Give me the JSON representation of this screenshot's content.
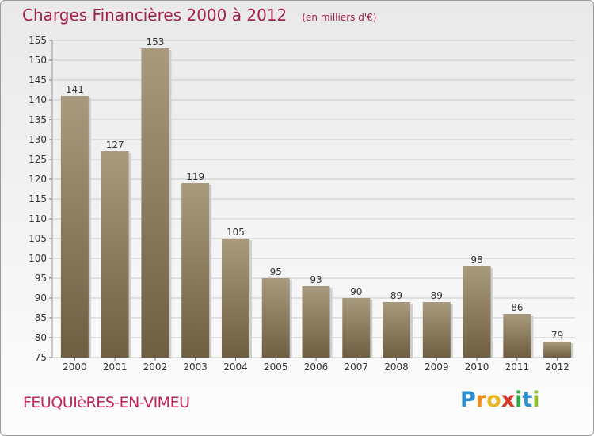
{
  "title": "Charges Financières 2000 à 2012",
  "unit_note": "(en milliers d'€)",
  "town": "FEUQUIèRES-EN-VIMEU",
  "brand": {
    "letters": [
      "P",
      "r",
      "o",
      "x",
      "i",
      "t",
      "i"
    ],
    "colors": [
      "#2e8fd0",
      "#f08c1e",
      "#e8b923",
      "#d83a2a",
      "#2fa84a",
      "#2e8fd0",
      "#8fbf2a"
    ]
  },
  "colors": {
    "title": "#a3204b",
    "bar_light": "#a89a7c",
    "bar_dark": "#6f5f42",
    "grid": "#c8c8c8",
    "axis_text": "#333333"
  },
  "chart_data": {
    "type": "bar",
    "categories": [
      "2000",
      "2001",
      "2002",
      "2003",
      "2004",
      "2005",
      "2006",
      "2007",
      "2008",
      "2009",
      "2010",
      "2011",
      "2012"
    ],
    "values": [
      141,
      127,
      153,
      119,
      105,
      95,
      93,
      90,
      89,
      89,
      98,
      86,
      79
    ],
    "ylim": [
      75,
      155
    ],
    "yticks": [
      75,
      80,
      85,
      90,
      95,
      100,
      105,
      110,
      115,
      120,
      125,
      130,
      135,
      140,
      145,
      150,
      155
    ],
    "grid": true
  }
}
